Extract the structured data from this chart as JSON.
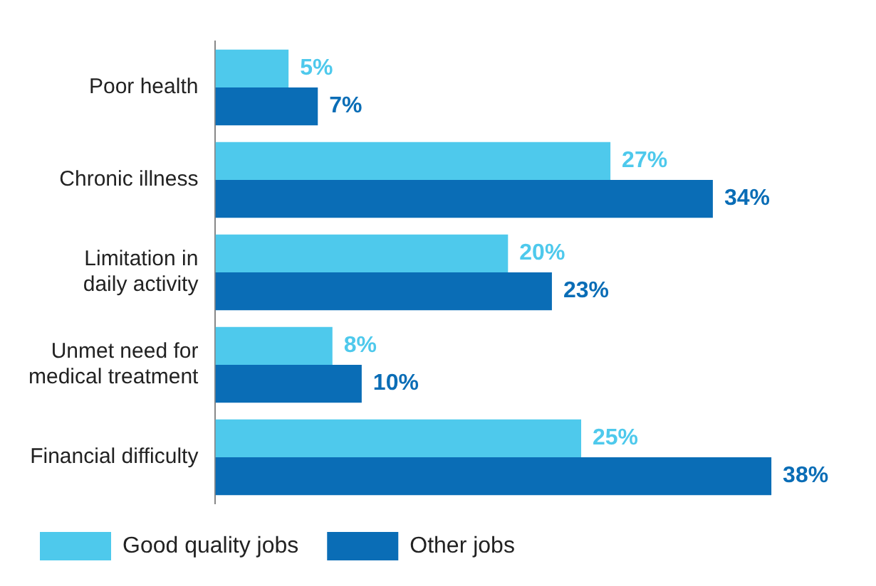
{
  "chart_data": {
    "type": "bar",
    "orientation": "horizontal",
    "categories": [
      "Poor health",
      "Chronic illness",
      "Limitation in\ndaily activity",
      "Unmet need for\nmedical treatment",
      "Financial difficulty"
    ],
    "series": [
      {
        "name": "Good quality jobs",
        "color": "#4ec9ec",
        "values": [
          5,
          27,
          20,
          8,
          25
        ],
        "value_labels": [
          "5%",
          "27%",
          "20%",
          "8%",
          "25%"
        ]
      },
      {
        "name": "Other jobs",
        "color": "#0a6db6",
        "values": [
          7,
          34,
          23,
          10,
          38
        ],
        "value_labels": [
          "7%",
          "34%",
          "23%",
          "10%",
          "38%"
        ]
      }
    ],
    "legend": "bottom left"
  }
}
